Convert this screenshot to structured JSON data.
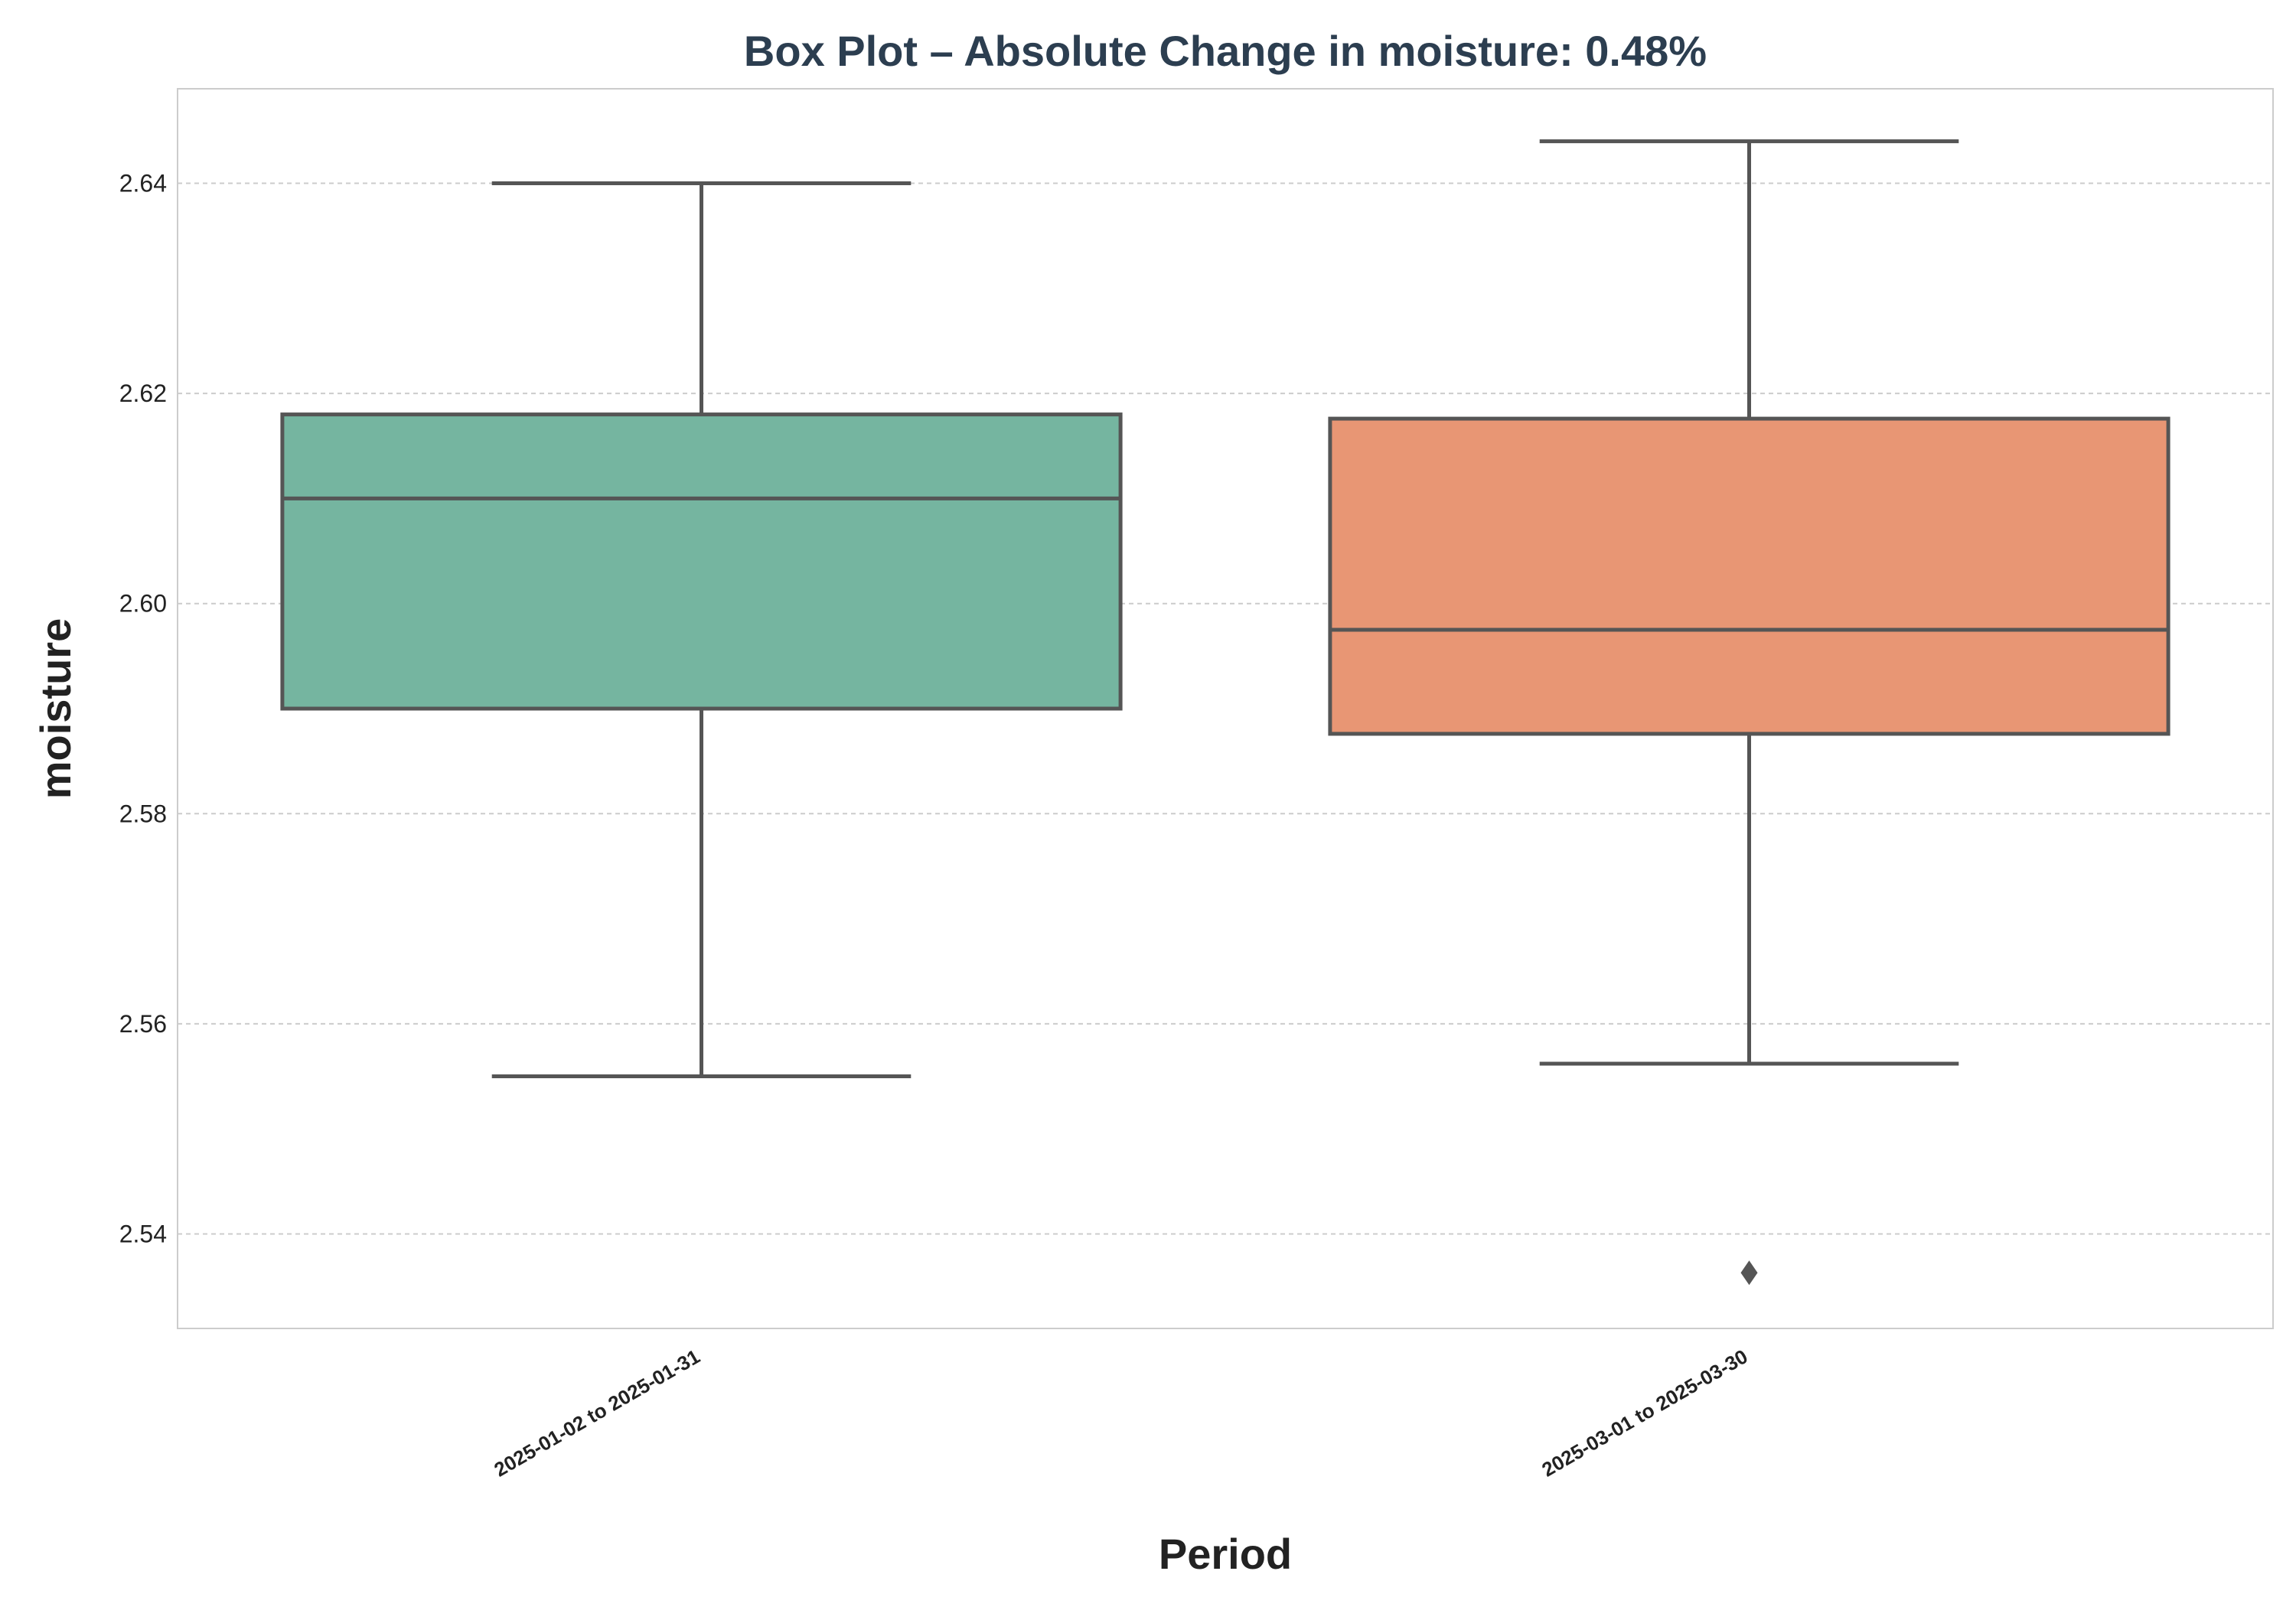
{
  "chart_data": {
    "type": "box",
    "title": "Box Plot – Absolute Change in moisture: 0.48%",
    "xlabel": "Period",
    "ylabel": "moisture",
    "ylim": [
      2.531,
      2.649
    ],
    "yticks": [
      2.54,
      2.56,
      2.58,
      2.6,
      2.62,
      2.64
    ],
    "ytick_labels": [
      "2.54",
      "2.56",
      "2.58",
      "2.60",
      "2.62",
      "2.64"
    ],
    "grid": "y-dashed",
    "categories": [
      "2025-01-02 to 2025-01-31",
      "2025-03-01 to 2025-03-30"
    ],
    "boxes": [
      {
        "label": "2025-01-02 to 2025-01-31",
        "whisker_low": 2.555,
        "q1": 2.59,
        "median": 2.61,
        "q3": 2.618,
        "whisker_high": 2.64,
        "outliers": [],
        "color": "#75b5a0"
      },
      {
        "label": "2025-03-01 to 2025-03-30",
        "whisker_low": 2.5562,
        "q1": 2.5876,
        "median": 2.5975,
        "q3": 2.6176,
        "whisker_high": 2.644,
        "outliers": [
          2.5363
        ],
        "color": "#e89674"
      }
    ],
    "line_color": "#555555"
  }
}
